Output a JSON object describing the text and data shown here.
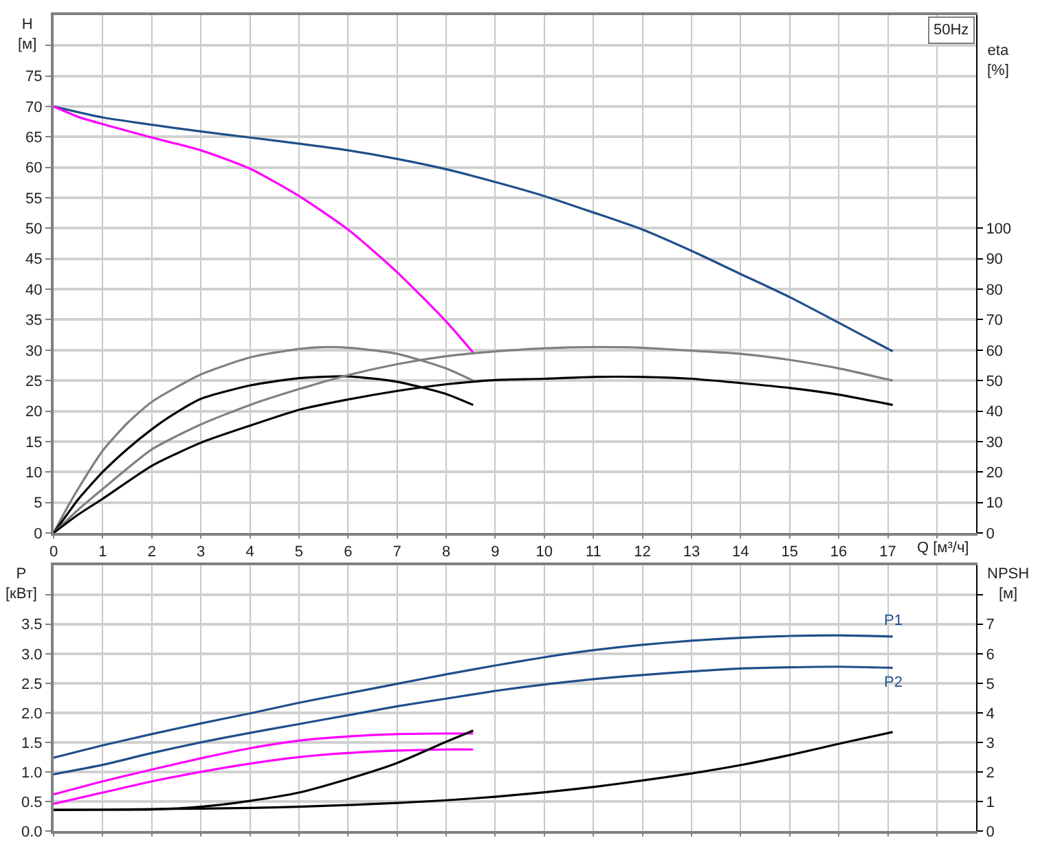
{
  "chart_data": [
    {
      "type": "line",
      "xlabel": "Q [м³/ч]",
      "ylabel": "H\n[м]",
      "y2label": "eta\n[%]",
      "annotations": [
        "50Hz"
      ],
      "xlim": [
        0,
        18.8
      ],
      "xticks": [
        0,
        1,
        2,
        3,
        4,
        5,
        6,
        7,
        8,
        9,
        10,
        11,
        12,
        13,
        14,
        15,
        16,
        17,
        {
          "value": 18,
          "label": null
        }
      ],
      "ylim": [
        0,
        85
      ],
      "yticks": [
        0,
        5,
        10,
        15,
        20,
        25,
        30,
        35,
        40,
        45,
        50,
        55,
        60,
        65,
        70,
        75,
        {
          "value": 80,
          "label": null
        }
      ],
      "y2lim": [
        0,
        170
      ],
      "y2ticks": [
        0,
        10,
        20,
        30,
        40,
        50,
        60,
        70,
        80,
        90,
        100
      ],
      "grid": true,
      "marker": "none",
      "line_style": "solid",
      "series": [
        {
          "color": "#1f4f8b",
          "x": [
            0,
            1,
            2,
            3,
            4,
            5,
            6,
            7,
            8,
            9,
            10,
            11,
            12,
            13,
            14,
            15,
            16,
            17.1
          ],
          "values": [
            70,
            68.2,
            67,
            65.9,
            64.9,
            63.9,
            62.8,
            61.4,
            59.7,
            57.6,
            55.3,
            52.6,
            49.8,
            46.3,
            42.5,
            38.7,
            34.5,
            29.8
          ]
        },
        {
          "color": "#ff00ff",
          "x": [
            0,
            0.5,
            1,
            2,
            3,
            4,
            5,
            6,
            7,
            8,
            8.55
          ],
          "values": [
            70,
            68.3,
            67.1,
            64.9,
            62.8,
            59.8,
            55.3,
            49.8,
            42.8,
            34.7,
            29.6
          ]
        },
        {
          "color": "#808080",
          "axis": "y2",
          "x": [
            0,
            0.25,
            0.5,
            1,
            1.5,
            2,
            3,
            4,
            5,
            5.6,
            6,
            7,
            8,
            8.55
          ],
          "values": [
            0,
            7.5,
            14.5,
            27,
            36,
            43,
            52,
            57.6,
            60.4,
            61,
            60.8,
            58.8,
            54,
            50
          ]
        },
        {
          "color": "#000000",
          "axis": "y2",
          "x": [
            0,
            0.25,
            0.5,
            1,
            1.5,
            2,
            2.45,
            3,
            4,
            5,
            6,
            7,
            8,
            8.55
          ],
          "values": [
            0,
            5.5,
            11,
            20,
            27.5,
            34,
            39,
            44,
            48.4,
            50.8,
            51.4,
            49.6,
            45.6,
            42
          ]
        },
        {
          "color": "#808080",
          "axis": "y2",
          "x": [
            0,
            0.5,
            1,
            2,
            3,
            4,
            5,
            6,
            7,
            8,
            9,
            10,
            11,
            12,
            13,
            14,
            15,
            16,
            17.1
          ],
          "values": [
            0,
            7.6,
            14.4,
            27.4,
            35.6,
            42,
            47.2,
            51.8,
            55.4,
            58,
            59.6,
            60.6,
            61,
            60.8,
            59.8,
            58.8,
            56.8,
            54,
            50
          ]
        },
        {
          "color": "#000000",
          "axis": "y2",
          "x": [
            0,
            0.5,
            1,
            2,
            3,
            4,
            5,
            6,
            7,
            8,
            9,
            10,
            11,
            12,
            13,
            14,
            15,
            16,
            17.1
          ],
          "values": [
            0,
            6,
            11.2,
            22,
            29.6,
            35.2,
            40.4,
            43.8,
            46.6,
            48.8,
            50.2,
            50.6,
            51.2,
            51.2,
            50.6,
            49.2,
            47.6,
            45.4,
            42
          ]
        }
      ]
    },
    {
      "type": "line",
      "ylabel": "P\n[кВт]",
      "y2label": "NPSH\n[м]",
      "xlim": [
        0,
        18.8
      ],
      "xticks": [
        0,
        1,
        2,
        3,
        4,
        5,
        6,
        7,
        8,
        9,
        10,
        11,
        12,
        13,
        14,
        15,
        16,
        17,
        18
      ],
      "ylim": [
        0,
        4.5
      ],
      "yticks": [
        {
          "value": 0,
          "label": "0.0"
        },
        0.5,
        {
          "value": 1,
          "label": "1.0"
        },
        1.5,
        {
          "value": 2,
          "label": "2.0"
        },
        2.5,
        {
          "value": 3,
          "label": "3.0"
        },
        3.5,
        {
          "value": 4,
          "label": null
        }
      ],
      "y2lim": [
        0,
        9
      ],
      "y2ticks": [
        0,
        1,
        2,
        3,
        4,
        5,
        6,
        7,
        {
          "value": 8,
          "label": null
        }
      ],
      "tick_labels": "y",
      "grid": true,
      "marker": "none",
      "line_style": "solid",
      "series": [
        {
          "name": "P1",
          "color": "#1f4f8b",
          "x": [
            0,
            1,
            2,
            3,
            4,
            5,
            6,
            7,
            8,
            9,
            10,
            11,
            12,
            13,
            14,
            15,
            16,
            17.1
          ],
          "values": [
            1.24,
            1.45,
            1.64,
            1.82,
            1.99,
            2.17,
            2.33,
            2.49,
            2.65,
            2.8,
            2.94,
            3.06,
            3.15,
            3.22,
            3.27,
            3.3,
            3.31,
            3.29
          ]
        },
        {
          "name": "P2",
          "color": "#1f4f8b",
          "x": [
            0,
            1,
            2,
            3,
            4,
            5,
            6,
            7,
            8,
            9,
            10,
            11,
            12,
            13,
            14,
            15,
            16,
            17.1
          ],
          "values": [
            0.96,
            1.12,
            1.32,
            1.5,
            1.66,
            1.81,
            1.96,
            2.11,
            2.24,
            2.37,
            2.48,
            2.57,
            2.64,
            2.7,
            2.75,
            2.77,
            2.78,
            2.76
          ]
        },
        {
          "color": "#ff00ff",
          "x": [
            0,
            1,
            2,
            3,
            4,
            5,
            6,
            7,
            8,
            8.55
          ],
          "values": [
            0.62,
            0.84,
            1.04,
            1.23,
            1.4,
            1.53,
            1.6,
            1.64,
            1.65,
            1.65
          ]
        },
        {
          "color": "#ff00ff",
          "x": [
            0,
            1,
            2,
            3,
            4,
            5,
            6,
            7,
            8,
            8.55
          ],
          "values": [
            0.46,
            0.65,
            0.84,
            1.0,
            1.14,
            1.25,
            1.32,
            1.36,
            1.38,
            1.38
          ]
        },
        {
          "color": "#000000",
          "axis": "y2",
          "x": [
            0,
            1,
            2,
            3,
            4,
            5,
            6,
            7,
            8,
            8.55
          ],
          "values": [
            0.72,
            0.72,
            0.73,
            0.82,
            1.02,
            1.3,
            1.76,
            2.3,
            3.02,
            3.4
          ]
        },
        {
          "color": "#000000",
          "axis": "y2",
          "x": [
            0,
            1,
            2,
            3,
            4,
            5,
            6,
            7,
            8,
            9,
            10,
            11,
            12,
            13,
            14,
            15,
            16,
            17.1
          ],
          "values": [
            0.71,
            0.72,
            0.74,
            0.76,
            0.78,
            0.82,
            0.88,
            0.95,
            1.04,
            1.16,
            1.31,
            1.49,
            1.71,
            1.95,
            2.23,
            2.57,
            2.95,
            3.35
          ]
        }
      ]
    }
  ]
}
